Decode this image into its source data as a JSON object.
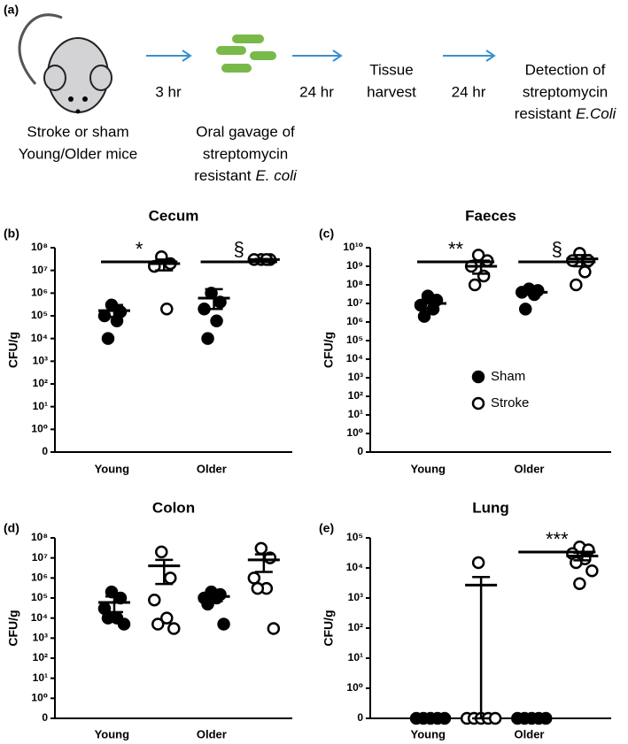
{
  "diagram": {
    "label": "(a)",
    "steps": [
      {
        "lines": [
          "Stroke or sham",
          "Young/Older mice"
        ]
      },
      {
        "lines": [
          "Oral gavage of",
          "streptomycin",
          {
            "text": "resistant",
            "italic": "E. coli"
          }
        ]
      },
      {
        "lines": [
          "Tissue",
          "harvest"
        ]
      },
      {
        "lines": [
          "Detection of",
          "streptomycin",
          {
            "text": "resistant",
            "italic": "E.Coli"
          }
        ]
      }
    ],
    "arrows": [
      "3 hr",
      "24 hr",
      "24 hr"
    ]
  },
  "chart_data": [
    {
      "type": "scatter",
      "panel_label": "(b)",
      "title": "Cecum",
      "y_label": "CFU/g",
      "log": true,
      "categories": [
        "Young",
        "Older"
      ],
      "ylim": [
        0,
        100000000
      ],
      "yticks": [
        0,
        {
          "value": 1,
          "label": "10⁰"
        },
        {
          "value": 10,
          "label": "10¹"
        },
        {
          "value": 100,
          "label": "10²"
        },
        {
          "value": 1000,
          "label": "10³"
        },
        {
          "value": 10000,
          "label": "10⁴"
        },
        {
          "value": 100000,
          "label": "10⁵"
        },
        {
          "value": 1000000,
          "label": "10⁶"
        },
        {
          "value": 10000000,
          "label": "10⁷"
        },
        {
          "value": 100000000,
          "label": "10⁸"
        }
      ],
      "series": [
        {
          "color": "#000000",
          "filled": true,
          "values": [
            [
              300000,
              150000,
              100000,
              60000,
              10000
            ],
            [
              1000000,
              400000,
              200000,
              60000,
              10000
            ]
          ],
          "mean": [
            170000,
            600000
          ],
          "error": [
            [
              90000,
              300000
            ],
            [
              200000,
              1500000
            ]
          ]
        },
        {
          "color": "#000000",
          "filled": false,
          "values": [
            [
              40000000,
              20000000,
              15000000,
              200000
            ],
            [
              30000000,
              30000000,
              30000000,
              30000000
            ]
          ],
          "mean": [
            20000000,
            30000000
          ],
          "error": [
            [
              10000000,
              30000000
            ],
            [
              28000000,
              32000000
            ]
          ]
        }
      ],
      "significance": [
        {
          "category": 0,
          "label": "*"
        },
        {
          "category": 1,
          "label": "§"
        }
      ]
    },
    {
      "type": "scatter",
      "panel_label": "(c)",
      "title": "Faeces",
      "y_label": "CFU/g",
      "log": true,
      "legend": "lower right",
      "categories": [
        "Young",
        "Older"
      ],
      "ylim": [
        0,
        10000000000
      ],
      "yticks": [
        0,
        {
          "value": 1,
          "label": "10⁰"
        },
        {
          "value": 10,
          "label": "10¹"
        },
        {
          "value": 100,
          "label": "10²"
        },
        {
          "value": 1000,
          "label": "10³"
        },
        {
          "value": 10000,
          "label": "10⁴"
        },
        {
          "value": 100000,
          "label": "10⁵"
        },
        {
          "value": 1000000,
          "label": "10⁶"
        },
        {
          "value": 10000000,
          "label": "10⁷"
        },
        {
          "value": 100000000,
          "label": "10⁸"
        },
        {
          "value": 1000000000,
          "label": "10⁹"
        },
        {
          "value": 10000000000,
          "label": "10¹⁰"
        }
      ],
      "series": [
        {
          "name": "Sham",
          "color": "#000000",
          "filled": true,
          "values": [
            [
              25000000,
              15000000,
              8000000,
              5000000,
              2000000
            ],
            [
              60000000,
              50000000,
              40000000,
              30000000,
              5000000
            ]
          ],
          "mean": [
            10000000,
            40000000
          ],
          "error": [
            [
              5000000,
              17000000
            ],
            [
              30000000,
              50000000
            ]
          ]
        },
        {
          "name": "Stroke",
          "color": "#000000",
          "filled": false,
          "values": [
            [
              4000000000,
              2000000000,
              1000000000,
              300000000,
              100000000
            ],
            [
              5000000000,
              2000000000,
              2000000000,
              500000000,
              100000000
            ]
          ],
          "mean": [
            1000000000,
            2500000000
          ],
          "error": [
            [
              400000000,
              2000000000
            ],
            [
              1000000000,
              4000000000
            ]
          ]
        }
      ],
      "significance": [
        {
          "category": 0,
          "label": "**"
        },
        {
          "category": 1,
          "label": "§"
        }
      ]
    },
    {
      "type": "scatter",
      "panel_label": "(d)",
      "title": "Colon",
      "y_label": "CFU/g",
      "log": true,
      "categories": [
        "Young",
        "Older"
      ],
      "ylim": [
        0,
        100000000
      ],
      "yticks": [
        0,
        {
          "value": 1,
          "label": "10⁰"
        },
        {
          "value": 10,
          "label": "10¹"
        },
        {
          "value": 100,
          "label": "10²"
        },
        {
          "value": 1000,
          "label": "10³"
        },
        {
          "value": 10000,
          "label": "10⁴"
        },
        {
          "value": 100000,
          "label": "10⁵"
        },
        {
          "value": 1000000,
          "label": "10⁶"
        },
        {
          "value": 10000000,
          "label": "10⁷"
        },
        {
          "value": 100000000,
          "label": "10⁸"
        }
      ],
      "series": [
        {
          "color": "#000000",
          "filled": true,
          "values": [
            [
              200000,
              100000,
              30000,
              10000,
              10000,
              5000
            ],
            [
              200000,
              150000,
              100000,
              100000,
              50000,
              5000
            ]
          ],
          "mean": [
            60000,
            120000
          ],
          "error": [
            [
              20000,
              120000
            ],
            [
              70000,
              200000
            ]
          ]
        },
        {
          "color": "#000000",
          "filled": false,
          "values": [
            [
              20000000,
              1000000,
              80000,
              10000,
              5000,
              3000
            ],
            [
              30000000,
              10000000,
              1000000,
              300000,
              300000,
              3000
            ]
          ],
          "mean": [
            4000000,
            8000000
          ],
          "error": [
            [
              500000,
              8000000
            ],
            [
              2000000,
              15000000
            ]
          ]
        }
      ]
    },
    {
      "type": "scatter",
      "panel_label": "(e)",
      "title": "Lung",
      "y_label": "CFU/g",
      "log": true,
      "categories": [
        "Young",
        "Older"
      ],
      "ylim": [
        0,
        100000
      ],
      "yticks": [
        0,
        {
          "value": 1,
          "label": "10⁰"
        },
        {
          "value": 10,
          "label": "10¹"
        },
        {
          "value": 100,
          "label": "10²"
        },
        {
          "value": 1000,
          "label": "10³"
        },
        {
          "value": 10000,
          "label": "10⁴"
        },
        {
          "value": 100000,
          "label": "10⁵"
        }
      ],
      "series": [
        {
          "color": "#000000",
          "filled": true,
          "values": [
            [
              0,
              0,
              0,
              0,
              0
            ],
            [
              0,
              0,
              0,
              0,
              0
            ]
          ],
          "mean": [
            0,
            0
          ],
          "error": [
            null,
            null
          ]
        },
        {
          "color": "#000000",
          "filled": false,
          "values": [
            [
              15000,
              0,
              0,
              0,
              0,
              0
            ],
            [
              50000,
              40000,
              30000,
              20000,
              15000,
              8000,
              3000
            ]
          ],
          "mean": [
            2700,
            25000
          ],
          "error": [
            [
              0,
              5000
            ],
            [
              18000,
              32000
            ]
          ]
        }
      ],
      "significance": [
        {
          "category": 1,
          "label": "***"
        }
      ]
    }
  ]
}
